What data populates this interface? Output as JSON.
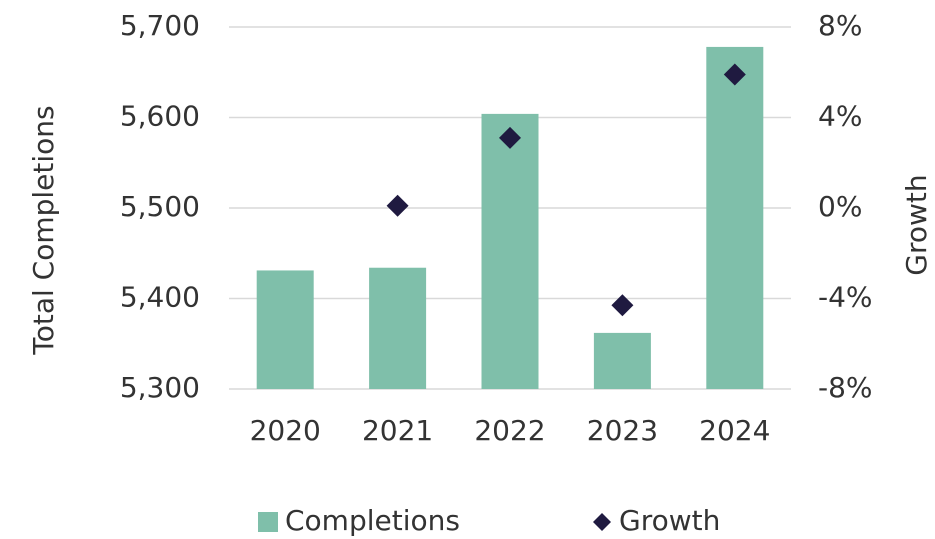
{
  "chart_data": {
    "type": "bar",
    "categories": [
      "2020",
      "2021",
      "2022",
      "2023",
      "2024"
    ],
    "series": [
      {
        "name": "Completions",
        "type": "bar",
        "color": "#7fbfaa",
        "values": [
          5431,
          5434,
          5604,
          5362,
          5678
        ]
      },
      {
        "name": "Growth",
        "type": "scatter",
        "axis": "y2",
        "color": "#1f1a40",
        "values": [
          null,
          0.1,
          3.1,
          -4.3,
          5.9
        ]
      }
    ],
    "ylabel": "Total Completions",
    "y2label": "Growth",
    "ylim": [
      5300,
      5700
    ],
    "yticks": [
      {
        "value": 5300,
        "label": "5,300"
      },
      {
        "value": 5400,
        "label": "5,400"
      },
      {
        "value": 5500,
        "label": "5,500"
      },
      {
        "value": 5600,
        "label": "5,600"
      },
      {
        "value": 5700,
        "label": "5,700"
      }
    ],
    "y2lim": [
      -8,
      8
    ],
    "y2ticks": [
      {
        "value": -8,
        "label": "-8%"
      },
      {
        "value": -4,
        "label": "-4%"
      },
      {
        "value": 0,
        "label": "0%"
      },
      {
        "value": 4,
        "label": "4%"
      },
      {
        "value": 8,
        "label": "8%"
      }
    ],
    "grid": true,
    "legend": "bottom"
  }
}
